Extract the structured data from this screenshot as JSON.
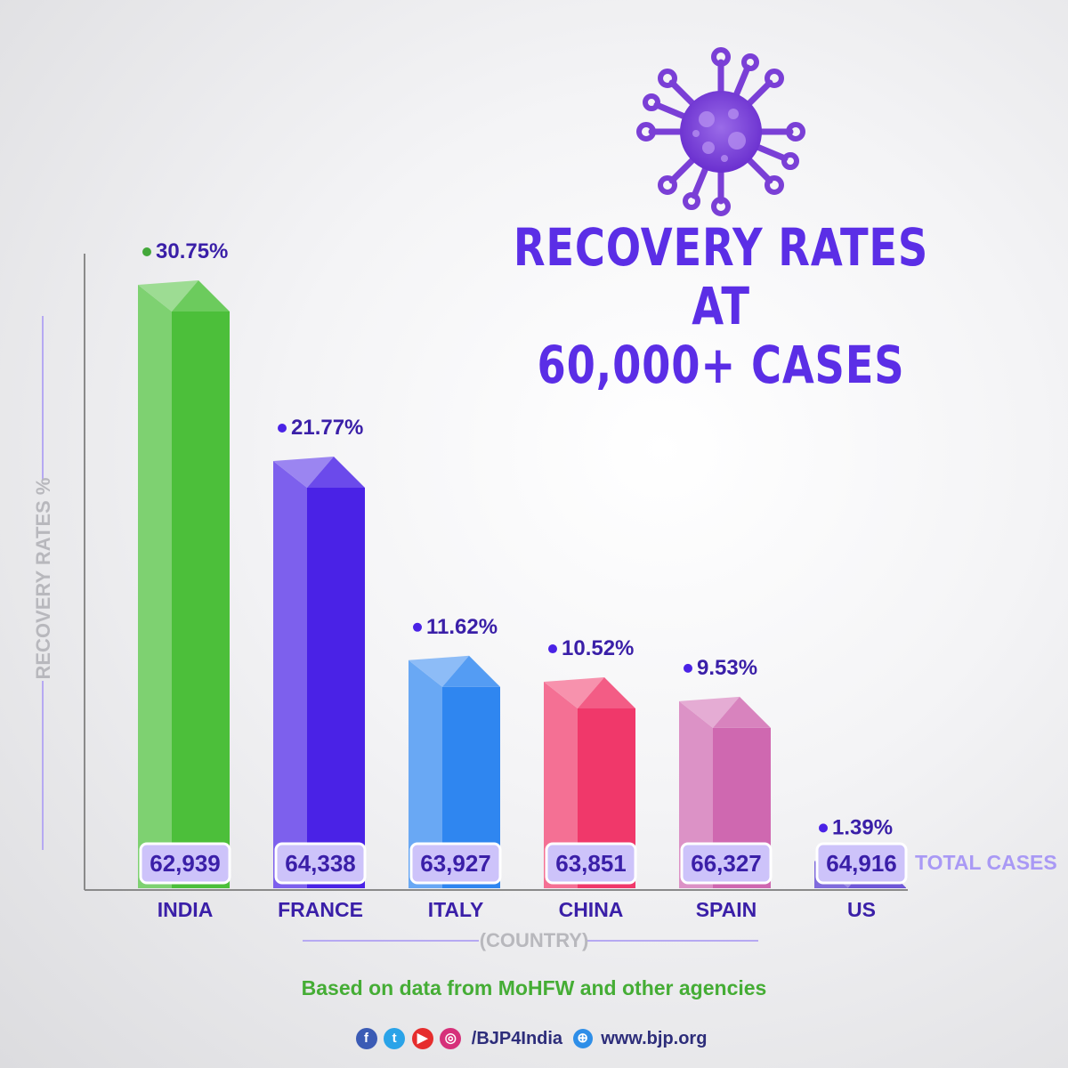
{
  "header": {
    "title_line1": "RECOVERY RATES AT",
    "title_line2": "60,000+ CASES"
  },
  "icons": {
    "virus": "virus-icon"
  },
  "chart_data": {
    "type": "bar",
    "categories": [
      "INDIA",
      "FRANCE",
      "ITALY",
      "CHINA",
      "SPAIN",
      "US"
    ],
    "values": [
      30.75,
      21.77,
      11.62,
      10.52,
      9.53,
      1.39
    ],
    "value_labels": [
      "30.75%",
      "21.77%",
      "11.62%",
      "10.52%",
      "9.53%",
      "1.39%"
    ],
    "total_cases": [
      "62,939",
      "64,338",
      "63,927",
      "63,851",
      "66,327",
      "64,916"
    ],
    "ylabel": "RECOVERY RATES %",
    "xlabel": "(COUNTRY)",
    "total_cases_label": "TOTAL CASES",
    "colors": [
      "#4cbf3a",
      "#4a22e6",
      "#2f86f0",
      "#f0386a",
      "#cf68b0",
      "#4f32cf"
    ],
    "label_dot_colors": [
      "#43a83a",
      "#4a22e6",
      "#4a22e6",
      "#4a22e6",
      "#4a22e6",
      "#4a22e6"
    ],
    "value_label_color": "#3a1fa8",
    "ylim": [
      0,
      32
    ],
    "grid": false
  },
  "footer": {
    "source": "Based on data from MoHFW and other agencies",
    "handle": "/BJP4India",
    "website": "www.bjp.org",
    "social_icons": [
      "facebook-icon",
      "twitter-icon",
      "youtube-icon",
      "instagram-icon"
    ]
  }
}
